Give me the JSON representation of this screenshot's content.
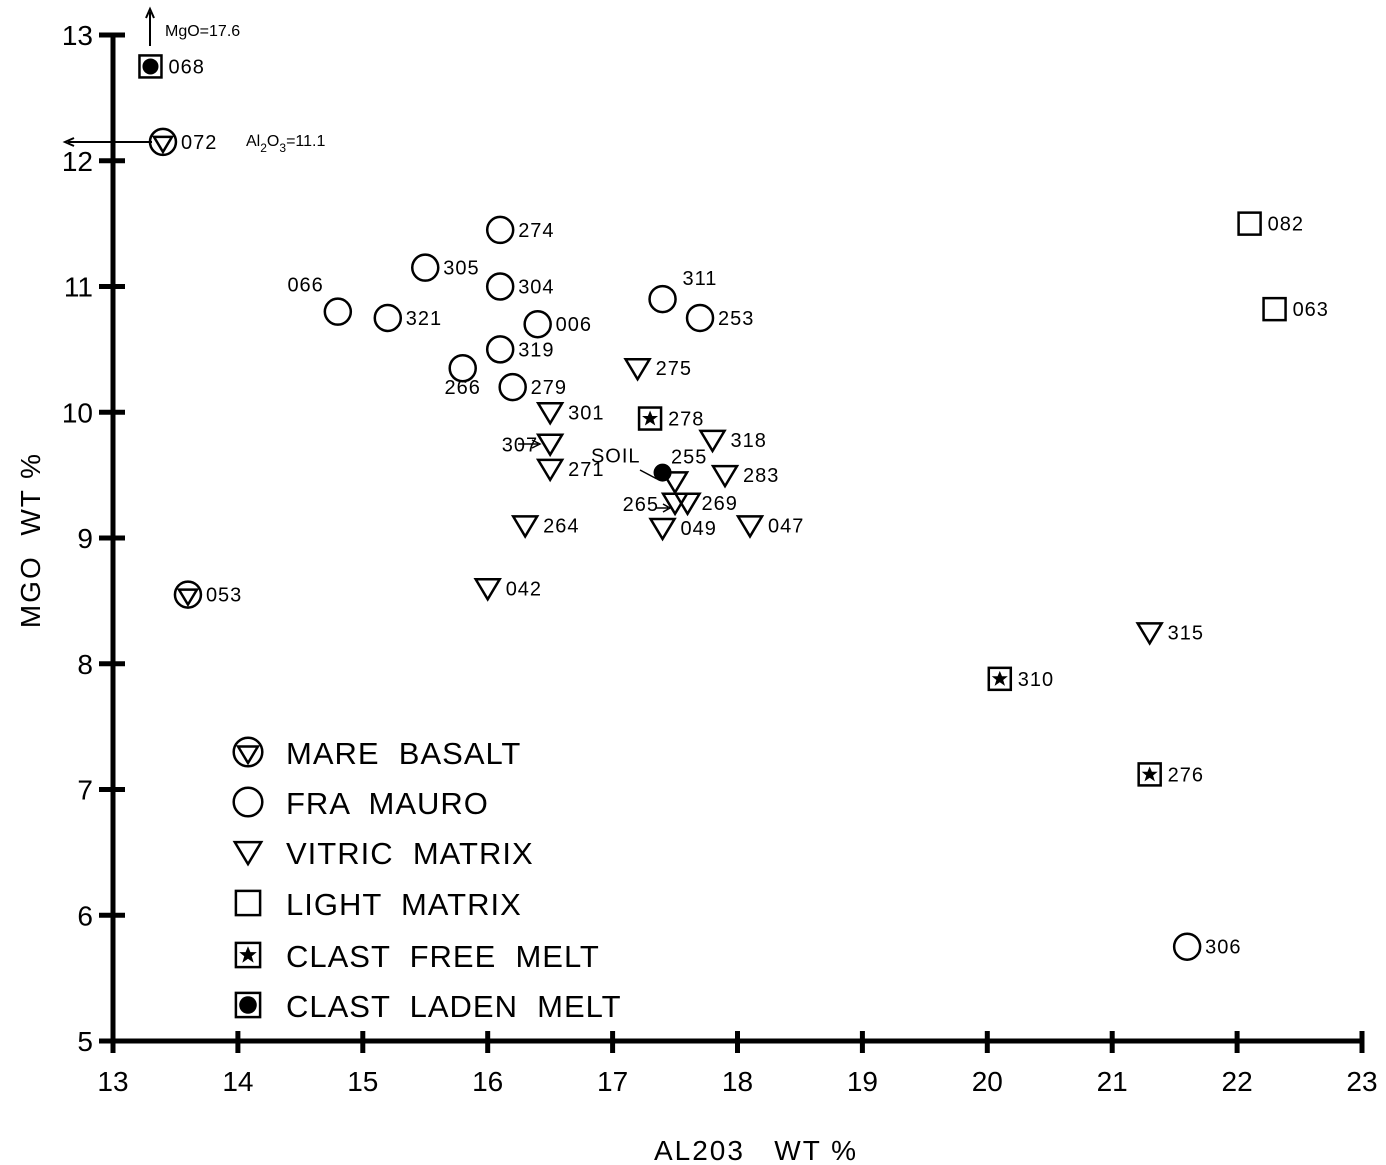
{
  "chart_data": {
    "type": "scatter",
    "xlabel": "AL203   WT %",
    "ylabel": "MGO  WT %",
    "xlim": [
      13,
      23
    ],
    "ylim": [
      5,
      13
    ],
    "x_ticks": [
      "13",
      "14",
      "15",
      "16",
      "17",
      "18",
      "19",
      "20",
      "21",
      "22",
      "23"
    ],
    "y_ticks": [
      "5",
      "6",
      "7",
      "8",
      "9",
      "10",
      "11",
      "12",
      "13"
    ],
    "grid": false,
    "legend_position": "bottom-left",
    "legend": [
      {
        "key": "mare",
        "label": "MARE  BASALT"
      },
      {
        "key": "fra",
        "label": "FRA  MAURO"
      },
      {
        "key": "vitric",
        "label": "VITRIC  MATRIX"
      },
      {
        "key": "light",
        "label": "LIGHT  MATRIX"
      },
      {
        "key": "cfm",
        "label": "CLAST  FREE  MELT"
      },
      {
        "key": "clm",
        "label": "CLAST  LADEN  MELT"
      }
    ],
    "points": [
      {
        "label": "068",
        "group": "clm",
        "x": 13.3,
        "y": 12.75
      },
      {
        "label": "072",
        "group": "mare",
        "x": 13.4,
        "y": 12.15
      },
      {
        "label": "053",
        "group": "mare",
        "x": 13.6,
        "y": 8.55
      },
      {
        "label": "274",
        "group": "fra",
        "x": 16.1,
        "y": 11.45
      },
      {
        "label": "305",
        "group": "fra",
        "x": 15.5,
        "y": 11.15
      },
      {
        "label": "304",
        "group": "fra",
        "x": 16.1,
        "y": 11.0
      },
      {
        "label": "066",
        "group": "fra",
        "x": 14.8,
        "y": 10.8
      },
      {
        "label": "321",
        "group": "fra",
        "x": 15.2,
        "y": 10.75
      },
      {
        "label": "006",
        "group": "fra",
        "x": 16.4,
        "y": 10.7
      },
      {
        "label": "319",
        "group": "fra",
        "x": 16.1,
        "y": 10.5
      },
      {
        "label": "266",
        "group": "fra",
        "x": 15.8,
        "y": 10.35
      },
      {
        "label": "279",
        "group": "fra",
        "x": 16.2,
        "y": 10.2
      },
      {
        "label": "311",
        "group": "fra",
        "x": 17.4,
        "y": 10.9
      },
      {
        "label": "253",
        "group": "fra",
        "x": 17.7,
        "y": 10.75
      },
      {
        "label": "306",
        "group": "fra",
        "x": 21.6,
        "y": 5.75
      },
      {
        "label": "275",
        "group": "vitric",
        "x": 17.2,
        "y": 10.35
      },
      {
        "label": "301",
        "group": "vitric",
        "x": 16.5,
        "y": 10.0
      },
      {
        "label": "307",
        "group": "vitric",
        "x": 16.5,
        "y": 9.75
      },
      {
        "label": "271",
        "group": "vitric",
        "x": 16.5,
        "y": 9.55
      },
      {
        "label": "318",
        "group": "vitric",
        "x": 17.8,
        "y": 9.78
      },
      {
        "label": "283",
        "group": "vitric",
        "x": 17.9,
        "y": 9.5
      },
      {
        "label": "255",
        "group": "vitric",
        "x": 17.5,
        "y": 9.45
      },
      {
        "label": "265",
        "group": "vitric",
        "x": 17.5,
        "y": 9.28
      },
      {
        "label": "269",
        "group": "vitric",
        "x": 17.6,
        "y": 9.28
      },
      {
        "label": "264",
        "group": "vitric",
        "x": 16.3,
        "y": 9.1
      },
      {
        "label": "049",
        "group": "vitric",
        "x": 17.4,
        "y": 9.08
      },
      {
        "label": "047",
        "group": "vitric",
        "x": 18.1,
        "y": 9.1
      },
      {
        "label": "042",
        "group": "vitric",
        "x": 16.0,
        "y": 8.6
      },
      {
        "label": "315",
        "group": "vitric",
        "x": 21.3,
        "y": 8.25
      },
      {
        "label": "278",
        "group": "cfm",
        "x": 17.3,
        "y": 9.95
      },
      {
        "label": "310",
        "group": "cfm",
        "x": 20.1,
        "y": 7.88
      },
      {
        "label": "276",
        "group": "cfm",
        "x": 21.3,
        "y": 7.12
      },
      {
        "label": "082",
        "group": "light",
        "x": 22.1,
        "y": 11.5
      },
      {
        "label": "063",
        "group": "light",
        "x": 22.3,
        "y": 10.82
      },
      {
        "label": "SOIL",
        "group": "clm",
        "x": 17.4,
        "y": 9.52
      }
    ],
    "annotations": {
      "mgo_note": "MgO=17.6",
      "al2o3_prefix": "Al",
      "al2o3_sub1": "2",
      "al2o3_mid": "O",
      "al2o3_sub2": "3",
      "al2o3_value": "=11.1"
    }
  }
}
